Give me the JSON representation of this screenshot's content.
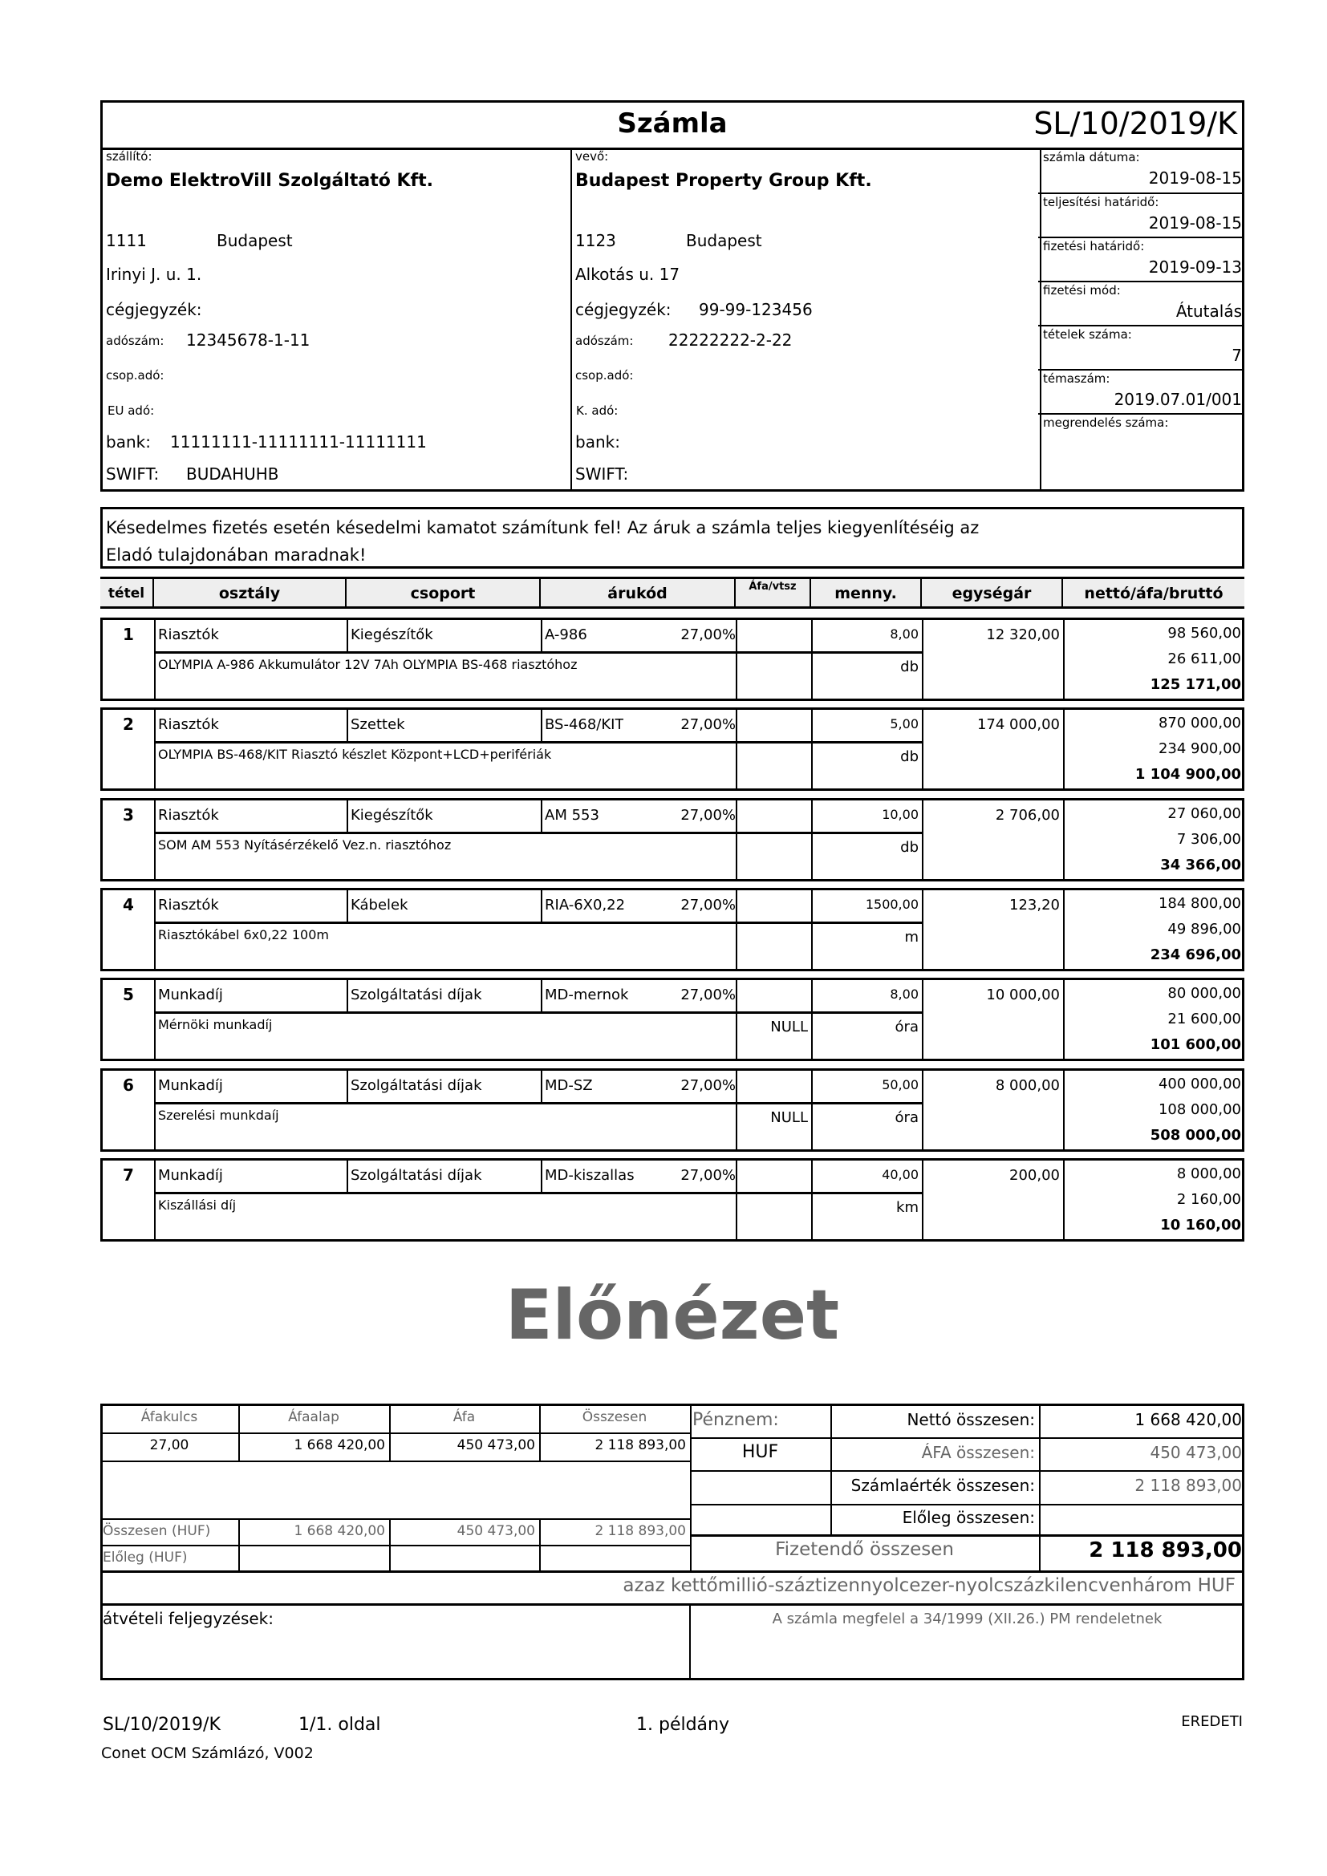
{
  "title": "Számla",
  "invoice_number": "SL/10/2019/K",
  "supplier": {
    "label": "szállító:",
    "name": "Demo ElektroVill Szolgáltató Kft.",
    "zip": "1111",
    "city": "Budapest",
    "street": "Irinyi J. u. 1.",
    "reg_label": "cégjegyzék:",
    "reg": "",
    "tax_label": "adószám:",
    "tax": "12345678-1-11",
    "group_tax_label": "csop.adó:",
    "eu_tax_label": "EU adó:",
    "bank_label": "bank:",
    "bank": "11111111-11111111-11111111",
    "swift_label": "SWIFT:",
    "swift": "BUDAHUHB"
  },
  "buyer": {
    "label": "vevő:",
    "name": "Budapest Property Group Kft.",
    "zip": "1123",
    "city": "Budapest",
    "street": "Alkotás u. 17",
    "reg_label": "cégjegyzék:",
    "reg": "99-99-123456",
    "tax_label": "adószám:",
    "tax": "22222222-2-22",
    "group_tax_label": "csop.adó:",
    "k_tax_label": "K. adó:",
    "bank_label": "bank:",
    "swift_label": "SWIFT:"
  },
  "info": [
    {
      "label": "számla dátuma:",
      "value": "2019-08-15"
    },
    {
      "label": "teljesítési határidő:",
      "value": "2019-08-15"
    },
    {
      "label": "fizetési határidő:",
      "value": "2019-09-13"
    },
    {
      "label": "fizetési mód:",
      "value": "Átutalás"
    },
    {
      "label": "tételek száma:",
      "value": "7"
    },
    {
      "label": "témaszám:",
      "value": "2019.07.01/001"
    },
    {
      "label": "megrendelés száma:",
      "value": ""
    }
  ],
  "note": "Késedelmes fizetés esetén késedelmi kamatot számítunk fel! Az áruk a számla teljes kiegyenlítéséig az Eladó tulajdonában maradnak!",
  "watermark": "Előnézet",
  "columns": [
    "tétel",
    "osztály",
    "csoport",
    "árukód",
    "Áfa/vtsz",
    "menny.",
    "egységár",
    "nettó/áfa/bruttó"
  ],
  "items": [
    {
      "no": "1",
      "class": "Riasztók",
      "group": "Kiegészítők",
      "code": "A-986",
      "vat": "27,00%",
      "qty": "8,00",
      "unit": "db",
      "vtsz": "",
      "price": "12 320,00",
      "net": "98 560,00",
      "tax": "26 611,00",
      "gross": "125 171,00",
      "desc": "OLYMPIA A-986 Akkumulátor 12V 7Ah OLYMPIA BS-468 riasztóhoz"
    },
    {
      "no": "2",
      "class": "Riasztók",
      "group": "Szettek",
      "code": "BS-468/KIT",
      "vat": "27,00%",
      "qty": "5,00",
      "unit": "db",
      "vtsz": "",
      "price": "174 000,00",
      "net": "870 000,00",
      "tax": "234 900,00",
      "gross": "1 104 900,00",
      "desc": "OLYMPIA BS-468/KIT Riasztó készlet Központ+LCD+perifériák"
    },
    {
      "no": "3",
      "class": "Riasztók",
      "group": "Kiegészítők",
      "code": "AM 553",
      "vat": "27,00%",
      "qty": "10,00",
      "unit": "db",
      "vtsz": "",
      "price": "2 706,00",
      "net": "27 060,00",
      "tax": "7 306,00",
      "gross": "34 366,00",
      "desc": "SOM AM 553 Nyításérzékelő Vez.n. riasztóhoz"
    },
    {
      "no": "4",
      "class": "Riasztók",
      "group": "Kábelek",
      "code": "RIA-6X0,22",
      "vat": "27,00%",
      "qty": "1500,00",
      "unit": "m",
      "vtsz": "",
      "price": "123,20",
      "net": "184 800,00",
      "tax": "49 896,00",
      "gross": "234 696,00",
      "desc": "Riasztókábel 6x0,22 100m"
    },
    {
      "no": "5",
      "class": "Munkadíj",
      "group": "Szolgáltatási díjak",
      "code": "MD-mernok",
      "vat": "27,00%",
      "qty": "8,00",
      "unit": "óra",
      "vtsz": "NULL",
      "price": "10 000,00",
      "net": "80 000,00",
      "tax": "21 600,00",
      "gross": "101 600,00",
      "desc": "Mérnöki munkadíj"
    },
    {
      "no": "6",
      "class": "Munkadíj",
      "group": "Szolgáltatási díjak",
      "code": "MD-SZ",
      "vat": "27,00%",
      "qty": "50,00",
      "unit": "óra",
      "vtsz": "NULL",
      "price": "8 000,00",
      "net": "400 000,00",
      "tax": "108 000,00",
      "gross": "508 000,00",
      "desc": "Szerelési munkdaíj"
    },
    {
      "no": "7",
      "class": "Munkadíj",
      "group": "Szolgáltatási díjak",
      "code": "MD-kiszallas",
      "vat": "27,00%",
      "qty": "40,00",
      "unit": "km",
      "vtsz": "",
      "price": "200,00",
      "net": "8 000,00",
      "tax": "2 160,00",
      "gross": "10 160,00",
      "desc": "Kiszállási díj"
    }
  ],
  "vat_summary": {
    "headers": [
      "Áfakulcs",
      "Áfaalap",
      "Áfa",
      "Összesen"
    ],
    "row": [
      "27,00",
      "1 668 420,00",
      "450 473,00",
      "2 118 893,00"
    ],
    "total_label": "Összesen (HUF)",
    "total": [
      "1 668 420,00",
      "450 473,00",
      "2 118 893,00"
    ],
    "advance_label": "Előleg (HUF)"
  },
  "totals": {
    "currency_label": "Pénznem:",
    "currency": "HUF",
    "net_label": "Nettó összesen:",
    "net": "1 668 420,00",
    "vat_label": "ÁFA összesen:",
    "vat": "450 473,00",
    "invoice_label": "Számlaérték összesen:",
    "invoice": "2 118 893,00",
    "advance_label": "Előleg összesen:",
    "advance": "",
    "payable_label": "Fizetendő összesen",
    "payable": "2 118 893,00"
  },
  "in_words": "azaz kettőmillió-száztizennyolcezer-nyolcszázkilencvenhárom HUF",
  "notes_label": "átvételi feljegyzések:",
  "legal": "A számla megfelel a 34/1999 (XII.26.) PM rendeletnek",
  "footer": {
    "number": "SL/10/2019/K",
    "page": "1/1. oldal",
    "copy": "1. példány",
    "original": "EREDETI",
    "software": "Conet OCM Számlázó, V002"
  }
}
